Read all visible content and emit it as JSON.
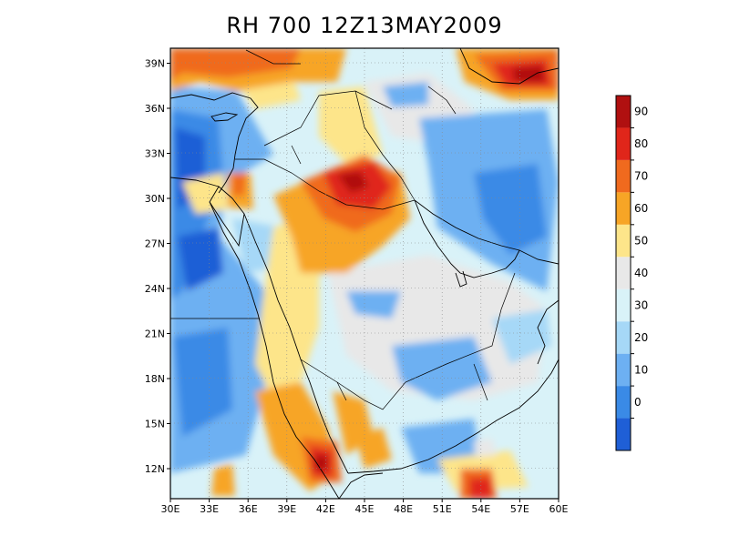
{
  "title": "RH 700  12Z13MAY2009",
  "map": {
    "lon_range": [
      30,
      60
    ],
    "lat_range": [
      10,
      40
    ],
    "lon_ticks": [
      "30E",
      "33E",
      "36E",
      "39E",
      "42E",
      "45E",
      "48E",
      "51E",
      "54E",
      "57E",
      "60E"
    ],
    "lat_ticks": [
      "12N",
      "15N",
      "18N",
      "21N",
      "24N",
      "27N",
      "30N",
      "33N",
      "36N",
      "39N"
    ],
    "grid": "dotted"
  },
  "colorbar": {
    "labels": [
      "0",
      "10",
      "20",
      "30",
      "40",
      "50",
      "60",
      "70",
      "80",
      "90"
    ],
    "colors": [
      "#1f5fd6",
      "#3a8ae6",
      "#6db0f2",
      "#a6d8f7",
      "#d9f2f8",
      "#e8e8e8",
      "#fde58a",
      "#f7a526",
      "#f06a1e",
      "#e0261a",
      "#b01010"
    ]
  }
}
